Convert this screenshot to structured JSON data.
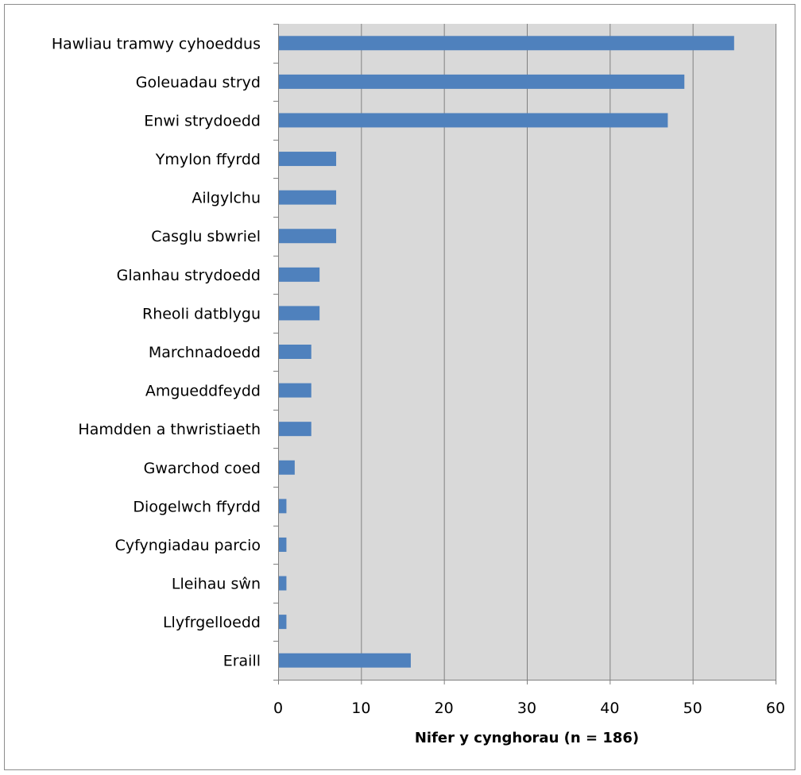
{
  "chart_data": {
    "type": "bar",
    "orientation": "horizontal",
    "categories": [
      "Hawliau tramwy cyhoeddus",
      "Goleuadau stryd",
      "Enwi strydoedd",
      "Ymylon ffyrdd",
      "Ailgylchu",
      "Casglu sbwriel",
      "Glanhau strydoedd",
      "Rheoli datblygu",
      "Marchnadoedd",
      "Amgueddfeydd",
      "Hamdden a thwristiaeth",
      "Gwarchod coed",
      "Diogelwch ffyrdd",
      "Cyfyngiadau parcio",
      "Lleihau sŵn",
      "Llyfrgelloedd",
      "Eraill"
    ],
    "values": [
      55,
      49,
      47,
      7,
      7,
      7,
      5,
      5,
      4,
      4,
      4,
      2,
      1,
      1,
      1,
      1,
      16
    ],
    "title": "",
    "xlabel": "Nifer y cynghorau (n = 186)",
    "ylabel": "",
    "xlim": [
      0,
      60
    ],
    "xticks": [
      "0",
      "10",
      "20",
      "30",
      "40",
      "50",
      "60"
    ],
    "grid": "vertical",
    "legend": "none",
    "colors": {
      "bar": "#4f81bd",
      "plot_background": "#d9d9d9",
      "gridline": "#808080",
      "border": "#8c8c8c"
    }
  }
}
